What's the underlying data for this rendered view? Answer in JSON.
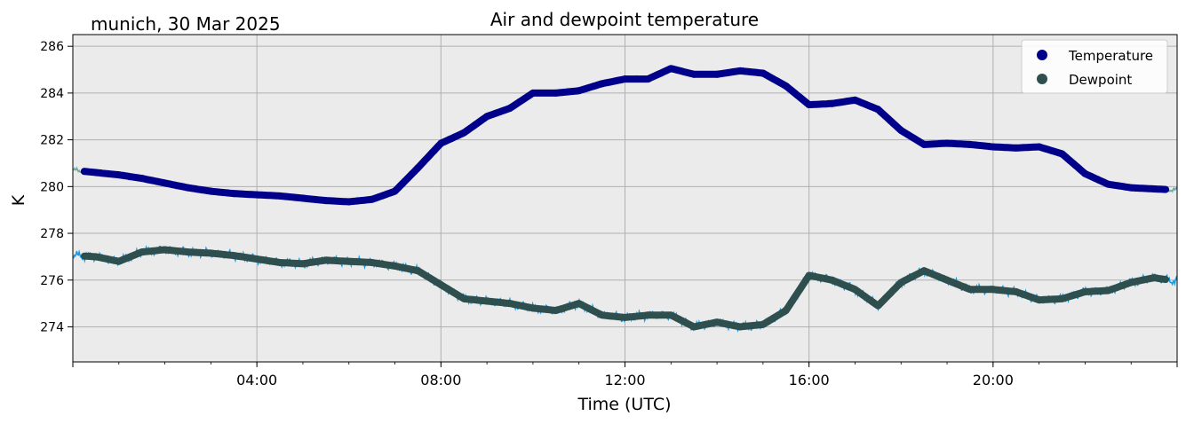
{
  "chart_data": {
    "type": "scatter",
    "title": "Air and dewpoint temperature",
    "subtitle": "munich, 30 Mar 2025",
    "xlabel": "Time (UTC)",
    "ylabel": "K",
    "xlim": [
      "00:00",
      "24:00"
    ],
    "ylim": [
      272.5,
      286.5
    ],
    "x_ticks": [
      "04:00",
      "08:00",
      "12:00",
      "16:00",
      "20:00"
    ],
    "y_ticks": [
      274,
      276,
      278,
      280,
      282,
      284,
      286
    ],
    "grid": true,
    "legend_position": "top-right",
    "colors": {
      "plot_background": "#ebebeb",
      "grid": "#b0b0b0",
      "temperature": "#00008b",
      "temperature_raw": "#6fa8a8",
      "dewpoint": "#2f4f4f",
      "dewpoint_raw": "#1e9be0"
    },
    "series": [
      {
        "name": "Temperature",
        "x": [
          "00:00",
          "00:15",
          "00:30",
          "01:00",
          "01:30",
          "02:00",
          "02:30",
          "03:00",
          "03:30",
          "04:00",
          "04:30",
          "05:00",
          "05:30",
          "06:00",
          "06:30",
          "07:00",
          "07:30",
          "08:00",
          "08:30",
          "09:00",
          "09:30",
          "10:00",
          "10:30",
          "11:00",
          "11:30",
          "12:00",
          "12:30",
          "13:00",
          "13:30",
          "14:00",
          "14:30",
          "15:00",
          "15:30",
          "16:00",
          "16:30",
          "17:00",
          "17:30",
          "18:00",
          "18:30",
          "19:00",
          "19:30",
          "20:00",
          "20:30",
          "21:00",
          "21:30",
          "22:00",
          "22:30",
          "23:00",
          "23:30",
          "24:00"
        ],
        "values": [
          280.7,
          280.65,
          280.6,
          280.5,
          280.35,
          280.15,
          279.95,
          279.8,
          279.7,
          279.65,
          279.6,
          279.5,
          279.4,
          279.35,
          279.45,
          279.8,
          280.8,
          281.85,
          282.3,
          283.0,
          283.35,
          284.0,
          284.0,
          284.1,
          284.4,
          284.6,
          284.6,
          285.05,
          284.8,
          284.8,
          284.95,
          284.85,
          284.3,
          283.5,
          283.55,
          283.7,
          283.3,
          282.4,
          281.8,
          281.85,
          281.8,
          281.7,
          281.65,
          281.7,
          281.4,
          280.55,
          280.1,
          279.95,
          279.9,
          279.85
        ]
      },
      {
        "name": "Dewpoint",
        "x": [
          "00:00",
          "00:30",
          "01:00",
          "01:30",
          "02:00",
          "02:30",
          "03:00",
          "03:30",
          "04:00",
          "04:30",
          "05:00",
          "05:30",
          "06:00",
          "06:30",
          "07:00",
          "07:30",
          "08:00",
          "08:30",
          "09:00",
          "09:30",
          "10:00",
          "10:30",
          "11:00",
          "11:30",
          "12:00",
          "12:30",
          "13:00",
          "13:30",
          "14:00",
          "14:30",
          "15:00",
          "15:30",
          "16:00",
          "16:30",
          "17:00",
          "17:30",
          "18:00",
          "18:30",
          "19:00",
          "19:30",
          "20:00",
          "20:30",
          "21:00",
          "21:30",
          "22:00",
          "22:30",
          "23:00",
          "23:30",
          "24:00"
        ],
        "values": [
          277.05,
          277.0,
          276.8,
          277.2,
          277.3,
          277.2,
          277.15,
          277.05,
          276.9,
          276.75,
          276.7,
          276.85,
          276.8,
          276.75,
          276.6,
          276.4,
          275.8,
          275.2,
          275.1,
          275.0,
          274.8,
          274.7,
          275.0,
          274.5,
          274.4,
          274.5,
          274.5,
          274.0,
          274.2,
          274.0,
          274.1,
          274.7,
          276.2,
          276.0,
          275.6,
          274.9,
          275.9,
          276.4,
          276.0,
          275.6,
          275.6,
          275.5,
          275.15,
          275.2,
          275.5,
          275.55,
          275.9,
          276.1,
          275.95
        ]
      }
    ]
  }
}
